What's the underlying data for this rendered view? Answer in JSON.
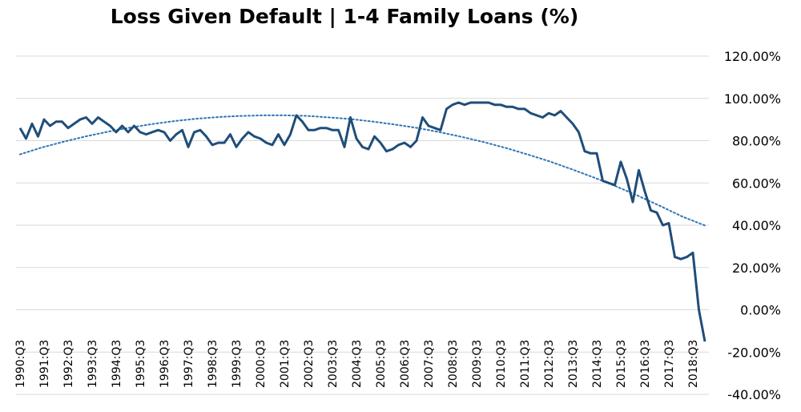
{
  "chart_data": {
    "type": "line",
    "title": "Loss Given Default | 1-4 Family Loans (%)",
    "xlabel": "",
    "ylabel": "",
    "ylim": [
      -40,
      120
    ],
    "y_ticks": [
      -40,
      -20,
      0,
      20,
      40,
      60,
      80,
      100,
      120
    ],
    "y_tick_labels": [
      "-40.00%",
      "-20.00%",
      "0.00%",
      "20.00%",
      "40.00%",
      "60.00%",
      "80.00%",
      "100.00%",
      "120.00%"
    ],
    "y_axis_position": "right",
    "grid": "horizontal",
    "legend": "none",
    "x_tick_labels": [
      "1990:Q3",
      "1991:Q3",
      "1992:Q3",
      "1993:Q3",
      "1994:Q3",
      "1995:Q3",
      "1996:Q3",
      "1997:Q3",
      "1998:Q3",
      "1999:Q3",
      "2000:Q3",
      "2001:Q3",
      "2002:Q3",
      "2003:Q3",
      "2004:Q3",
      "2005:Q3",
      "2006:Q3",
      "2007:Q3",
      "2008:Q3",
      "2009:Q3",
      "2010:Q3",
      "2011:Q3",
      "2012:Q3",
      "2013:Q3",
      "2014:Q3",
      "2015:Q3",
      "2016:Q3",
      "2017:Q3",
      "2018:Q3"
    ],
    "start_quarter": "1990:Q3",
    "colors": {
      "line": "#1f4e79",
      "trend": "#2e75b6",
      "grid": "#d9d9d9"
    },
    "series": [
      {
        "style": "solid",
        "values": [
          86,
          81,
          88,
          82,
          90,
          87,
          89,
          89,
          86,
          88,
          90,
          91,
          88,
          91,
          89,
          87,
          84,
          87,
          84,
          87,
          84,
          83,
          84,
          85,
          84,
          80,
          83,
          85,
          77,
          84,
          85,
          82,
          78,
          79,
          79,
          83,
          77,
          81,
          84,
          82,
          81,
          79,
          78,
          83,
          78,
          83,
          92,
          89,
          85,
          85,
          86,
          86,
          85,
          85,
          77,
          91,
          81,
          77,
          76,
          82,
          79,
          75,
          76,
          78,
          79,
          77,
          80,
          91,
          87,
          86,
          85,
          95,
          97,
          98,
          97,
          98,
          98,
          98,
          98,
          97,
          97,
          96,
          96,
          95,
          95,
          93,
          92,
          91,
          93,
          92,
          94,
          91,
          88,
          84,
          75,
          74,
          74,
          61,
          60,
          59,
          70,
          62,
          51,
          66,
          56,
          47,
          46,
          40,
          41,
          25,
          24,
          25,
          27,
          0,
          -15
        ]
      },
      {
        "name": "trend",
        "style": "dotted",
        "type": "polynomial",
        "values": [
          73.5,
          76.8,
          79.6,
          82.1,
          84.3,
          86.2,
          87.9,
          89.3,
          90.4,
          91.2,
          91.7,
          92.0,
          92.0,
          91.7,
          91.0,
          90.2,
          89.0,
          87.6,
          86.0,
          84.0,
          81.8,
          79.3,
          76.5,
          73.4,
          70.1,
          66.4,
          62.5,
          58.3,
          53.8,
          49.0,
          44.0,
          39.9
        ]
      }
    ]
  }
}
